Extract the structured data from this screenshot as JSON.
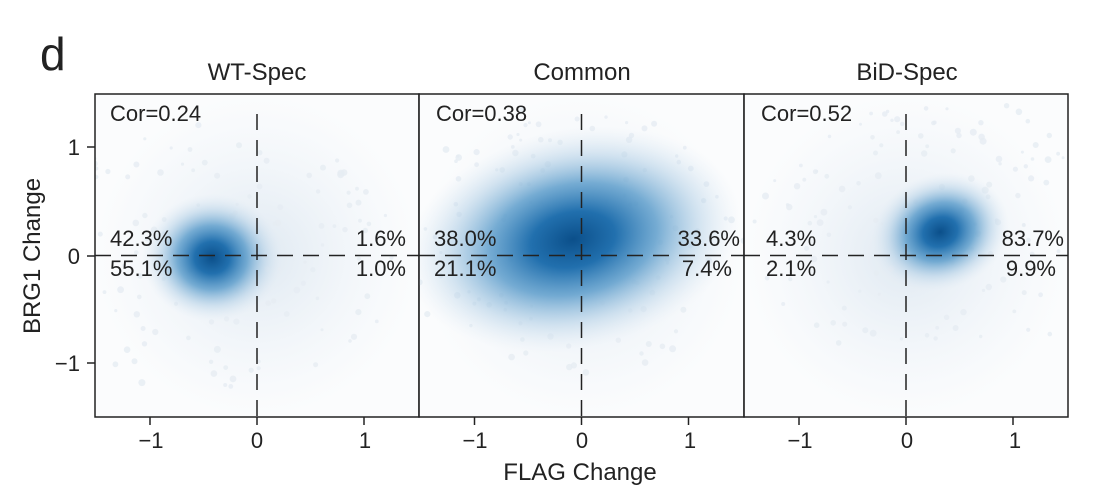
{
  "figure": {
    "panel_letter": "d"
  },
  "chart_data": [
    {
      "type": "scatter",
      "title": "WT-Spec",
      "xlabel": "FLAG Change",
      "ylabel": "BRG1 Change",
      "xlim": [
        -1.5,
        1.5
      ],
      "ylim": [
        -1.5,
        1.5
      ],
      "xticks": [
        -1,
        0,
        1
      ],
      "yticks": [
        -1,
        0,
        1
      ],
      "correlation": "Cor=0.24",
      "quadrants": {
        "top_left": "42.3%",
        "top_right": "1.6%",
        "bottom_left": "55.1%",
        "bottom_right": "1.0%"
      },
      "density_center": [
        -0.42,
        -0.02
      ],
      "color": "#1f6fad"
    },
    {
      "type": "scatter",
      "title": "Common",
      "xlabel": "FLAG Change",
      "ylabel": "BRG1 Change",
      "xlim": [
        -1.5,
        1.5
      ],
      "ylim": [
        -1.5,
        1.5
      ],
      "xticks": [
        -1,
        0,
        1
      ],
      "yticks": [
        -1,
        0,
        1
      ],
      "correlation": "Cor=0.38",
      "quadrants": {
        "top_left": "38.0%",
        "top_right": "33.6%",
        "bottom_left": "21.1%",
        "bottom_right": "7.4%"
      },
      "density_center": [
        -0.08,
        0.15
      ],
      "color": "#1f6fad"
    },
    {
      "type": "scatter",
      "title": "BiD-Spec",
      "xlabel": "FLAG Change",
      "ylabel": "BRG1 Change",
      "xlim": [
        -1.5,
        1.5
      ],
      "ylim": [
        -1.5,
        1.5
      ],
      "xticks": [
        -1,
        0,
        1
      ],
      "yticks": [
        -1,
        0,
        1
      ],
      "correlation": "Cor=0.52",
      "quadrants": {
        "top_left": "4.3%",
        "top_right": "83.7%",
        "bottom_left": "2.1%",
        "bottom_right": "9.9%"
      },
      "density_center": [
        0.32,
        0.22
      ],
      "color": "#1f6fad"
    }
  ],
  "axes": {
    "ytick_labels": [
      "1",
      "0",
      "−1"
    ],
    "xtick_labels": [
      "−1",
      "0",
      "1"
    ]
  }
}
